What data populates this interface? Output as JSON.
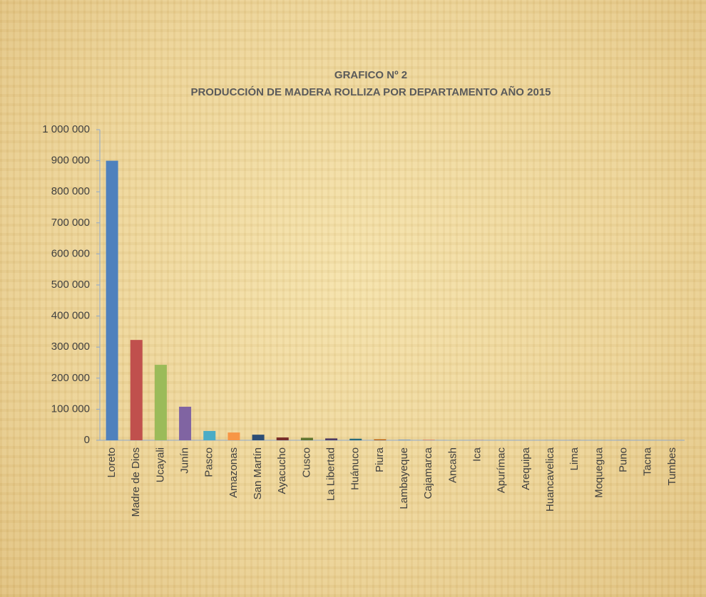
{
  "chart_data": {
    "type": "bar",
    "title": "GRAFICO Nº 2",
    "subtitle": "PRODUCCIÓN DE MADERA ROLLIZA POR DEPARTAMENTO AÑO 2015",
    "categories": [
      "Loreto",
      "Madre de Dios",
      "Ucayali",
      "Junín",
      "Pasco",
      "Amazonas",
      "San Martín",
      "Ayacucho",
      "Cusco",
      "La Libertad",
      "Huánuco",
      "Piura",
      "Lambayeque",
      "Cajamarca",
      "Ancash",
      "Ica",
      "Apurímac",
      "Arequipa",
      "Huancavelica",
      "Lima",
      "Moquegua",
      "Puno",
      "Tacna",
      "Tumbes"
    ],
    "values": [
      900000,
      323000,
      243000,
      108000,
      30000,
      25000,
      18000,
      9000,
      8000,
      6000,
      5000,
      3000,
      2000,
      1500,
      500,
      1000,
      200,
      200,
      200,
      200,
      200,
      200,
      200,
      200
    ],
    "colors": [
      "#4f81bd",
      "#c0504d",
      "#9bbb59",
      "#8064a2",
      "#4bacc6",
      "#f79646",
      "#2c4d75",
      "#772c2a",
      "#5f7530",
      "#4d3b62",
      "#276a7c",
      "#b65708",
      "#729aca",
      "#cd7371",
      "#afc97a",
      "#9983b5",
      "#6fbdd1",
      "#f9ab6b",
      "#3a679c",
      "#9f3b38",
      "#7f9c40",
      "#664f83",
      "#358ea6",
      "#f38225"
    ],
    "ylim": [
      0,
      1000000
    ],
    "yticks": [
      0,
      {
        "value": 100000,
        "label": "100 000"
      },
      {
        "value": 200000,
        "label": "200 000"
      },
      {
        "value": 300000,
        "label": "300 000"
      },
      {
        "value": 400000,
        "label": "400 000"
      },
      {
        "value": 500000,
        "label": "500 000"
      },
      {
        "value": 600000,
        "label": "600 000"
      },
      {
        "value": 700000,
        "label": "700 000"
      },
      {
        "value": 800000,
        "label": "800 000"
      },
      {
        "value": 900000,
        "label": "900 000"
      },
      {
        "value": 1000000,
        "label": "1 000 000"
      }
    ],
    "grid": false
  }
}
